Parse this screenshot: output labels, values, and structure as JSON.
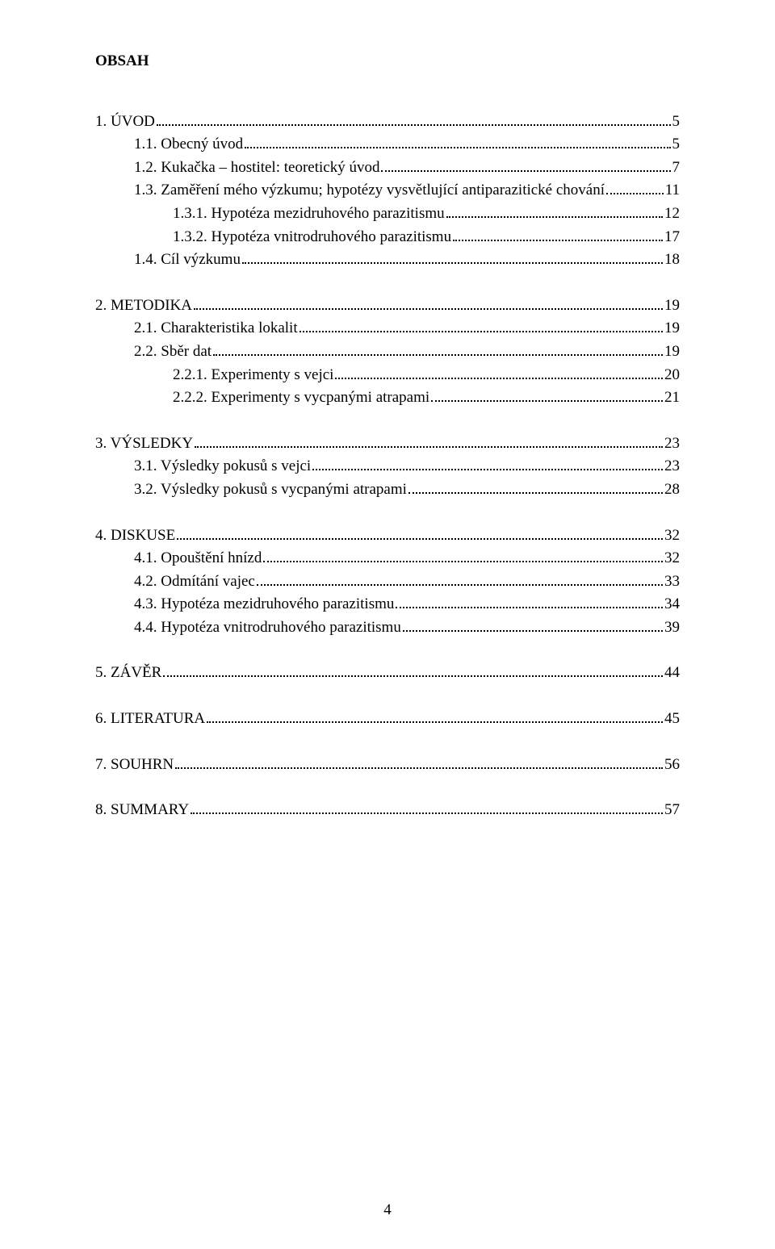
{
  "heading": "OBSAH",
  "page_number": "4",
  "toc": [
    {
      "indent": 0,
      "label": "1. ÚVOD",
      "page": "5",
      "gap_before": 1
    },
    {
      "indent": 1,
      "label": "1.1. Obecný úvod",
      "page": "5",
      "gap_before": 0
    },
    {
      "indent": 1,
      "label": "1.2. Kukačka – hostitel: teoretický úvod",
      "page": "7",
      "gap_before": 0
    },
    {
      "indent": 1,
      "label": "1.3. Zaměření mého výzkumu; hypotézy vysvětlující antiparazitické chování",
      "page": "11",
      "gap_before": 0
    },
    {
      "indent": 2,
      "label": "1.3.1. Hypotéza mezidruhového parazitismu",
      "page": "12",
      "gap_before": 0
    },
    {
      "indent": 2,
      "label": "1.3.2. Hypotéza vnitrodruhového parazitismu",
      "page": "17",
      "gap_before": 0
    },
    {
      "indent": 1,
      "label": "1.4. Cíl výzkumu",
      "page": "18",
      "gap_before": 0
    },
    {
      "indent": 0,
      "label": "2. METODIKA",
      "page": "19",
      "gap_before": 1
    },
    {
      "indent": 1,
      "label": "2.1. Charakteristika lokalit",
      "page": "19",
      "gap_before": 0
    },
    {
      "indent": 1,
      "label": "2.2. Sběr dat",
      "page": "19",
      "gap_before": 0
    },
    {
      "indent": 2,
      "label": "2.2.1. Experimenty s vejci",
      "page": "20",
      "gap_before": 0
    },
    {
      "indent": 2,
      "label": "2.2.2. Experimenty s vycpanými atrapami",
      "page": "21",
      "gap_before": 0
    },
    {
      "indent": 0,
      "label": "3. VÝSLEDKY",
      "page": "23",
      "gap_before": 1
    },
    {
      "indent": 1,
      "label": "3.1. Výsledky pokusů s vejci",
      "page": "23",
      "gap_before": 0
    },
    {
      "indent": 1,
      "label": "3.2. Výsledky pokusů s vycpanými atrapami",
      "page": "28",
      "gap_before": 0
    },
    {
      "indent": 0,
      "label": "4. DISKUSE",
      "page": "32",
      "gap_before": 1
    },
    {
      "indent": 1,
      "label": "4.1. Opouštění hnízd",
      "page": "32",
      "gap_before": 0
    },
    {
      "indent": 1,
      "label": "4.2. Odmítání vajec",
      "page": "33",
      "gap_before": 0
    },
    {
      "indent": 1,
      "label": "4.3. Hypotéza mezidruhového parazitismu",
      "page": "34",
      "gap_before": 0
    },
    {
      "indent": 1,
      "label": "4.4. Hypotéza vnitrodruhového parazitismu",
      "page": "39",
      "gap_before": 0
    },
    {
      "indent": 0,
      "label": "5. ZÁVĚR",
      "page": "44",
      "gap_before": 1
    },
    {
      "indent": 0,
      "label": "6. LITERATURA",
      "page": "45",
      "gap_before": 1
    },
    {
      "indent": 0,
      "label": "7. SOUHRN",
      "page": "56",
      "gap_before": 1
    },
    {
      "indent": 0,
      "label": "8. SUMMARY",
      "page": "57",
      "gap_before": 1
    }
  ]
}
